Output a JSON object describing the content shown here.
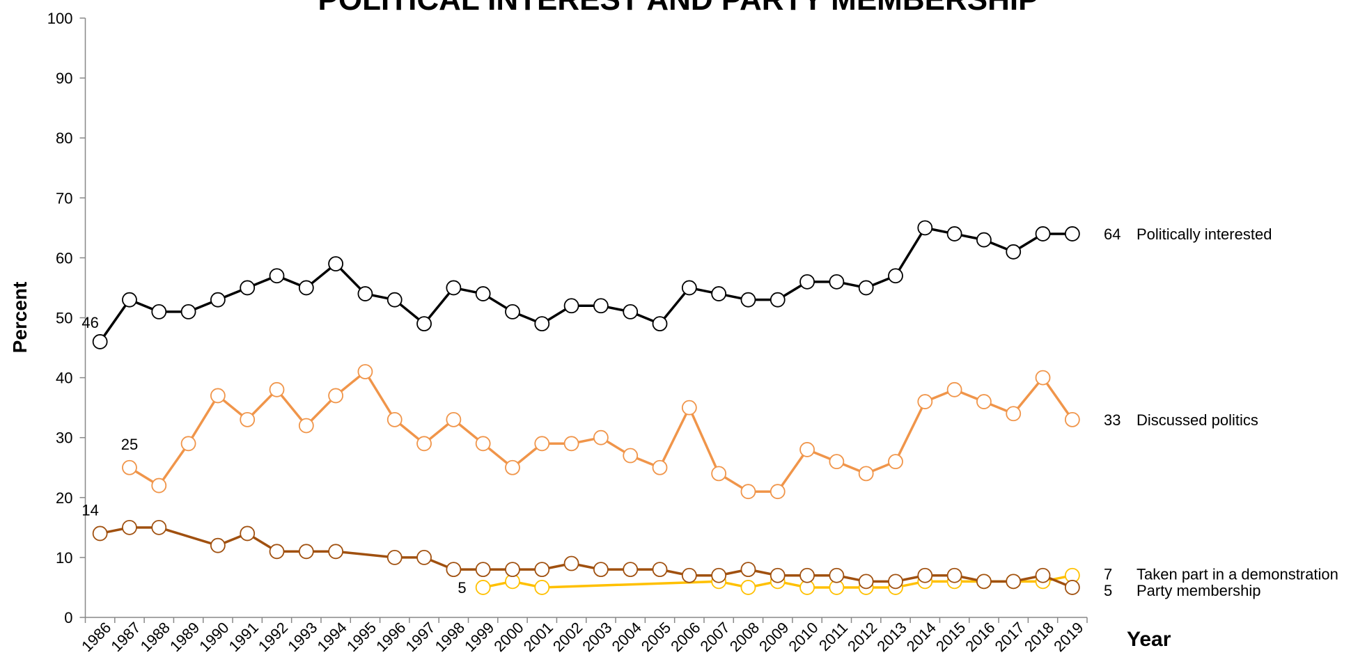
{
  "chart_data": {
    "type": "line",
    "title": "POLITICAL INTEREST AND PARTY MEMBERSHIP",
    "y_label": "Percent",
    "x_label": "Year",
    "categories": [
      "1986",
      "1987",
      "1988",
      "1989",
      "1990",
      "1991",
      "1992",
      "1993",
      "1994",
      "1995",
      "1996",
      "1997",
      "1998",
      "1999",
      "2000",
      "2001",
      "2002",
      "2003",
      "2004",
      "2005",
      "2006",
      "2007",
      "2008",
      "2009",
      "2010",
      "2011",
      "2012",
      "2013",
      "2014",
      "2015",
      "2016",
      "2017",
      "2018",
      "2019"
    ],
    "connect_gaps": true,
    "ylim": [
      0,
      100
    ],
    "yticks": [
      0,
      10,
      20,
      30,
      40,
      50,
      60,
      70,
      80,
      90,
      100
    ],
    "series": [
      {
        "name": "Politically interested",
        "color": "#000000",
        "values": [
          46,
          53,
          51,
          51,
          53,
          55,
          57,
          55,
          59,
          54,
          53,
          49,
          55,
          54,
          51,
          49,
          52,
          52,
          51,
          49,
          55,
          54,
          53,
          53,
          56,
          56,
          55,
          57,
          65,
          64,
          63,
          61,
          64,
          64
        ]
      },
      {
        "name": "Discussed politics",
        "color": "#f0954a",
        "values": [
          null,
          25,
          22,
          29,
          37,
          33,
          38,
          32,
          37,
          41,
          33,
          29,
          33,
          29,
          25,
          29,
          29,
          30,
          27,
          25,
          35,
          24,
          21,
          21,
          28,
          26,
          24,
          26,
          36,
          38,
          36,
          34,
          40,
          33
        ]
      },
      {
        "name": "Taken part in a demonstration",
        "color": "#ffc000",
        "values": [
          null,
          null,
          null,
          null,
          null,
          null,
          null,
          null,
          null,
          null,
          null,
          null,
          null,
          5,
          6,
          5,
          null,
          null,
          null,
          null,
          null,
          6,
          5,
          6,
          5,
          5,
          5,
          5,
          6,
          6,
          6,
          6,
          6,
          7
        ]
      },
      {
        "name": "Party membership",
        "color": "#a0500f",
        "values": [
          14,
          15,
          15,
          null,
          12,
          14,
          11,
          11,
          11,
          null,
          10,
          10,
          8,
          8,
          8,
          8,
          9,
          8,
          8,
          8,
          7,
          7,
          8,
          7,
          7,
          7,
          6,
          6,
          7,
          7,
          6,
          6,
          7,
          5
        ]
      }
    ]
  }
}
